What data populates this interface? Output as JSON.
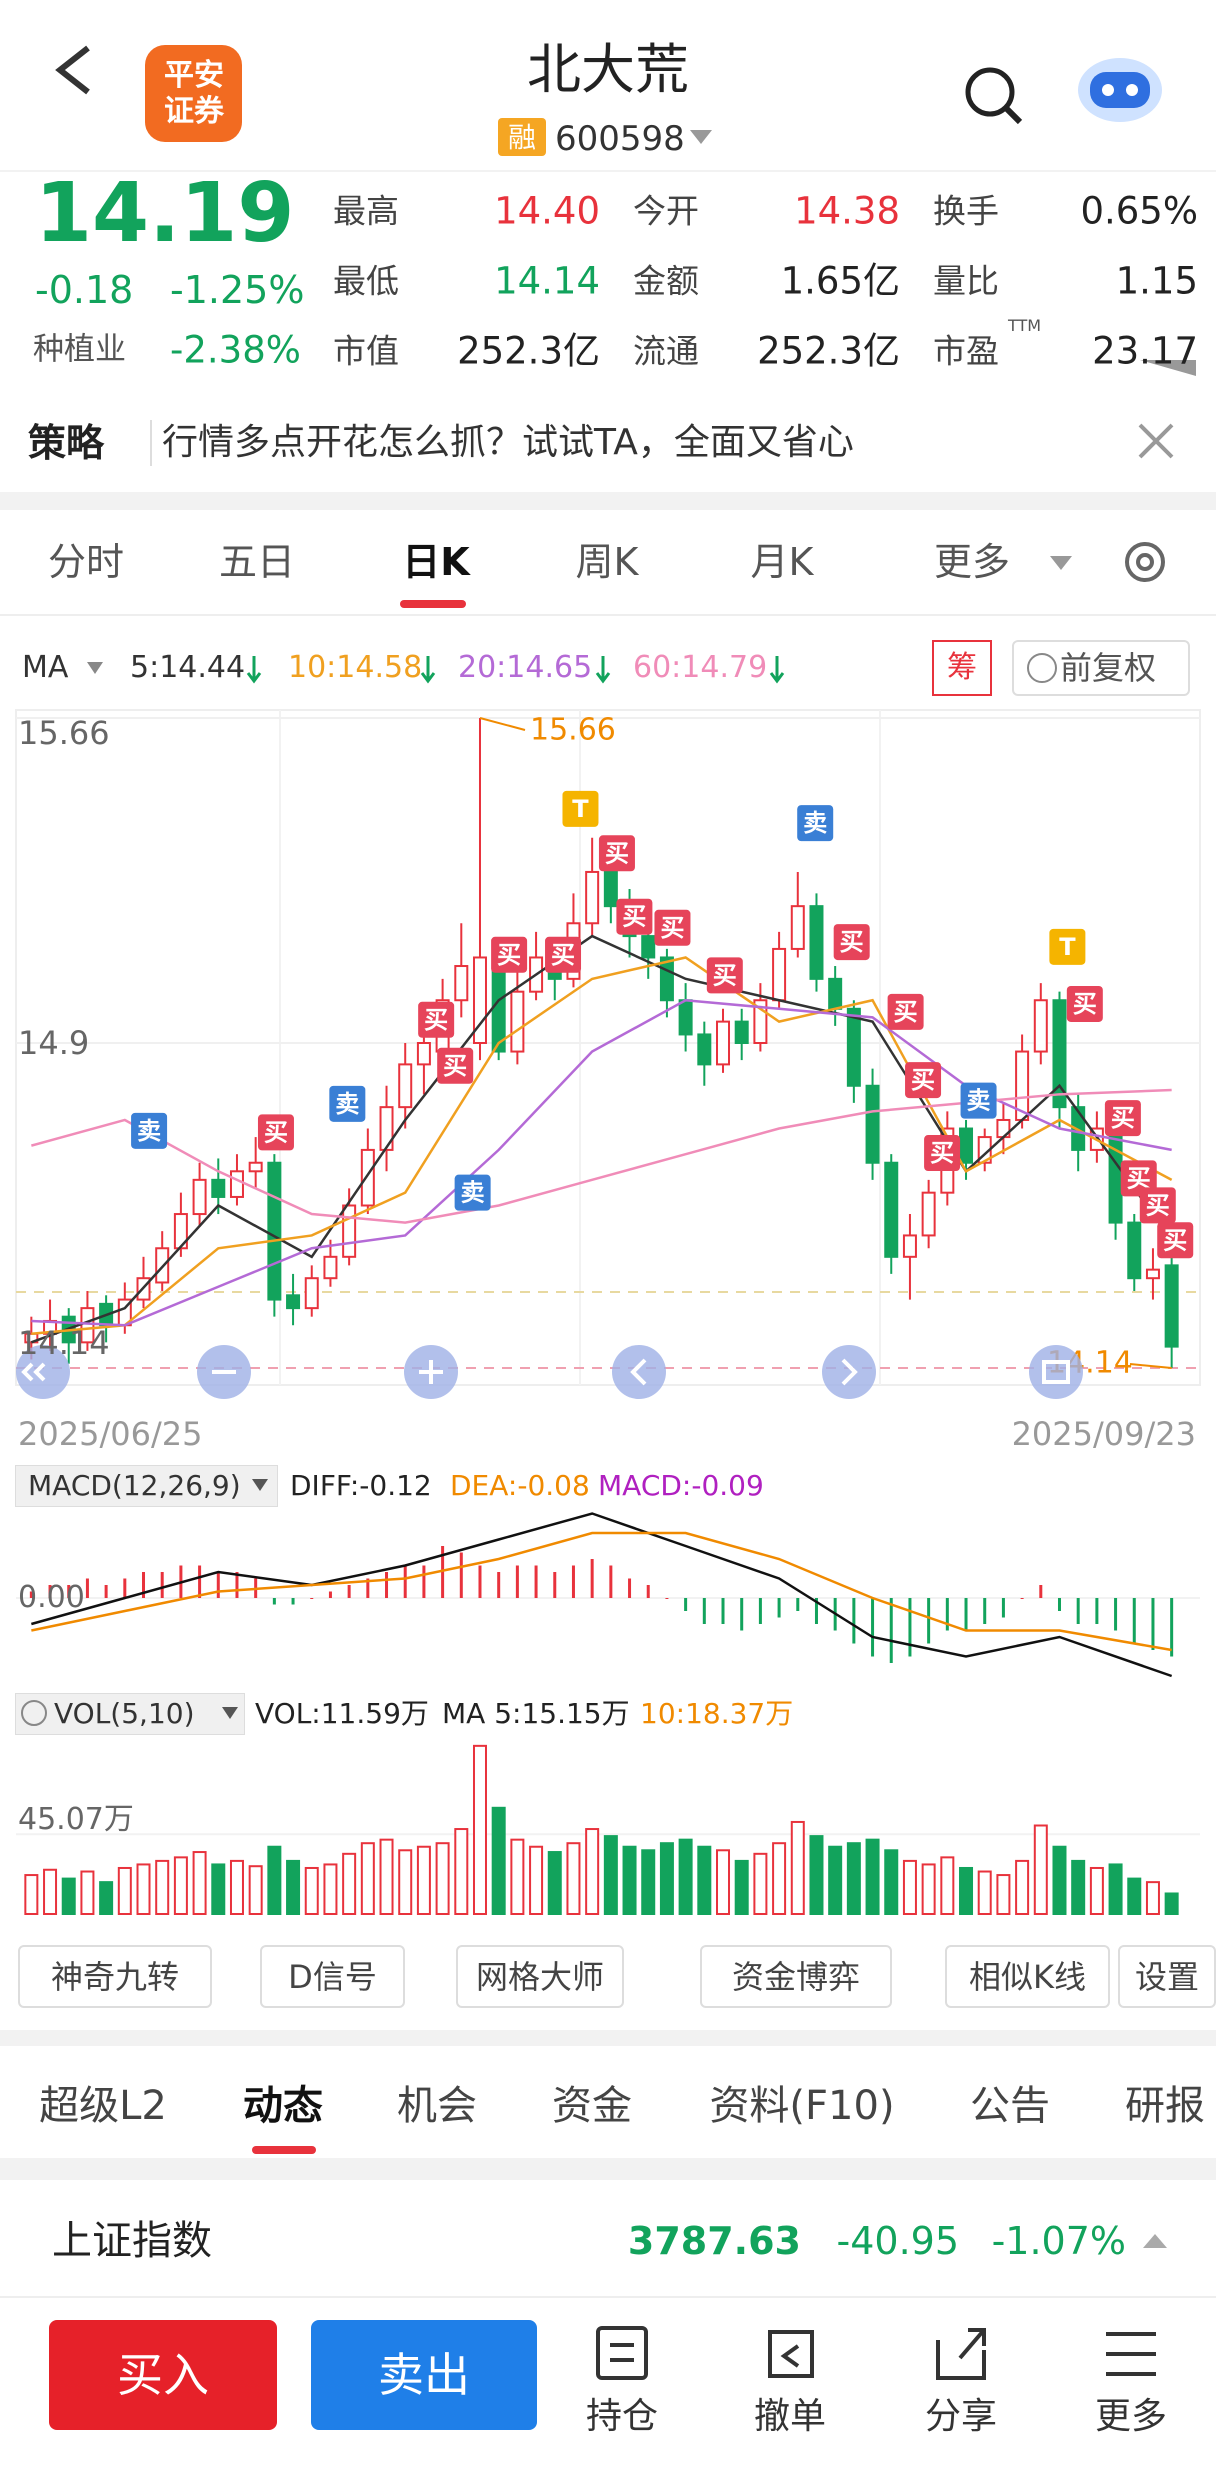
{
  "header": {
    "logo_top": "平安",
    "logo_bottom": "证券",
    "title": "北大荒",
    "badge": "融",
    "code": "600598"
  },
  "quote": {
    "price": "14.19",
    "change": "-0.18",
    "change_pct": "-1.25%",
    "sector": "种植业",
    "sector_pct": "-2.38%",
    "ttm": "TTM",
    "stats": [
      {
        "label": "最高",
        "value": "14.40",
        "color": "#e8323c"
      },
      {
        "label": "今开",
        "value": "14.38",
        "color": "#e8323c"
      },
      {
        "label": "换手",
        "value": "0.65%",
        "color": "#222222"
      },
      {
        "label": "最低",
        "value": "14.14",
        "color": "#12a35c"
      },
      {
        "label": "金额",
        "value": "1.65亿",
        "color": "#222222"
      },
      {
        "label": "量比",
        "value": "1.15",
        "color": "#222222"
      },
      {
        "label": "市值",
        "value": "252.3亿",
        "color": "#222222"
      },
      {
        "label": "流通",
        "value": "252.3亿",
        "color": "#222222"
      },
      {
        "label": "市盈",
        "value": "23.17",
        "color": "#222222"
      }
    ]
  },
  "banner": {
    "tag": "策略",
    "text": "行情多点开花怎么抓？试试TA，全面又省心"
  },
  "period_tabs": [
    "分时",
    "五日",
    "日K",
    "周K",
    "月K",
    "更多"
  ],
  "kline": {
    "ma_label": "MA",
    "chip": "筹",
    "adjust": "前复权",
    "start_date": "2025/06/25",
    "end_date": "2025/09/23",
    "ylim": [
      14.14,
      15.66
    ],
    "yticks": [
      15.66,
      14.9,
      14.14
    ],
    "ma_days": [
      1,
      6,
      11,
      16,
      21,
      26,
      31,
      36,
      41,
      46,
      51,
      56,
      62
    ],
    "ma": [
      {
        "name": "5:14.44",
        "color": "#333333",
        "values": [
          14.2,
          14.28,
          14.52,
          14.4,
          14.72,
          15.0,
          15.15,
          15.05,
          15.0,
          14.95,
          14.6,
          14.8,
          14.44
        ]
      },
      {
        "name": "10:14.58",
        "color": "#f0a020",
        "values": [
          14.22,
          14.24,
          14.42,
          14.45,
          14.55,
          14.9,
          15.05,
          15.1,
          14.95,
          15.0,
          14.6,
          14.72,
          14.58
        ]
      },
      {
        "name": "20:14.65",
        "color": "#b46ad6",
        "values": [
          14.25,
          14.24,
          14.33,
          14.42,
          14.45,
          14.65,
          14.88,
          15.0,
          14.98,
          14.96,
          14.8,
          14.7,
          14.65
        ]
      },
      {
        "name": "60:14.79",
        "color": "#f08cb8",
        "values": [
          14.66,
          14.72,
          14.6,
          14.5,
          14.48,
          14.52,
          14.58,
          14.64,
          14.7,
          14.74,
          14.76,
          14.78,
          14.79
        ]
      }
    ],
    "candles": [
      [
        14.2,
        14.26,
        14.16,
        14.22
      ],
      [
        14.22,
        14.3,
        14.18,
        14.25
      ],
      [
        14.26,
        14.28,
        14.15,
        14.2
      ],
      [
        14.2,
        14.32,
        14.18,
        14.28
      ],
      [
        14.29,
        14.31,
        14.2,
        14.24
      ],
      [
        14.24,
        14.34,
        14.22,
        14.3
      ],
      [
        14.3,
        14.4,
        14.28,
        14.35
      ],
      [
        14.34,
        14.46,
        14.32,
        14.42
      ],
      [
        14.42,
        14.55,
        14.4,
        14.5
      ],
      [
        14.5,
        14.62,
        14.47,
        14.58
      ],
      [
        14.58,
        14.63,
        14.5,
        14.54
      ],
      [
        14.54,
        14.64,
        14.52,
        14.6
      ],
      [
        14.6,
        14.68,
        14.56,
        14.62
      ],
      [
        14.62,
        14.64,
        14.26,
        14.3
      ],
      [
        14.31,
        14.36,
        14.24,
        14.28
      ],
      [
        14.28,
        14.38,
        14.26,
        14.35
      ],
      [
        14.35,
        14.44,
        14.33,
        14.4
      ],
      [
        14.4,
        14.56,
        14.38,
        14.52
      ],
      [
        14.52,
        14.7,
        14.5,
        14.65
      ],
      [
        14.65,
        14.8,
        14.6,
        14.75
      ],
      [
        14.75,
        14.9,
        14.7,
        14.85
      ],
      [
        14.85,
        14.95,
        14.78,
        14.9
      ],
      [
        14.88,
        15.05,
        14.86,
        15.0
      ],
      [
        15.0,
        15.18,
        14.96,
        15.08
      ],
      [
        14.9,
        15.66,
        14.86,
        15.1
      ],
      [
        15.1,
        15.12,
        14.86,
        14.88
      ],
      [
        14.88,
        15.08,
        14.85,
        15.02
      ],
      [
        15.02,
        15.16,
        15.0,
        15.1
      ],
      [
        15.1,
        15.14,
        15.0,
        15.05
      ],
      [
        15.05,
        15.25,
        15.03,
        15.18
      ],
      [
        15.18,
        15.38,
        15.15,
        15.3
      ],
      [
        15.3,
        15.34,
        15.18,
        15.22
      ],
      [
        15.22,
        15.26,
        15.1,
        15.15
      ],
      [
        15.15,
        15.18,
        15.05,
        15.1
      ],
      [
        15.1,
        15.12,
        14.96,
        15.0
      ],
      [
        15.0,
        15.04,
        14.88,
        14.92
      ],
      [
        14.92,
        14.95,
        14.8,
        14.85
      ],
      [
        14.85,
        14.98,
        14.83,
        14.95
      ],
      [
        14.95,
        14.98,
        14.86,
        14.9
      ],
      [
        14.9,
        15.04,
        14.88,
        15.0
      ],
      [
        15.0,
        15.16,
        14.98,
        15.12
      ],
      [
        15.12,
        15.3,
        15.1,
        15.22
      ],
      [
        15.22,
        15.25,
        15.02,
        15.05
      ],
      [
        15.05,
        15.08,
        14.94,
        14.98
      ],
      [
        14.98,
        15.0,
        14.76,
        14.8
      ],
      [
        14.8,
        14.84,
        14.58,
        14.62
      ],
      [
        14.62,
        14.64,
        14.36,
        14.4
      ],
      [
        14.4,
        14.5,
        14.3,
        14.45
      ],
      [
        14.45,
        14.58,
        14.42,
        14.55
      ],
      [
        14.55,
        14.74,
        14.52,
        14.7
      ],
      [
        14.7,
        14.72,
        14.58,
        14.62
      ],
      [
        14.62,
        14.7,
        14.6,
        14.68
      ],
      [
        14.68,
        14.76,
        14.64,
        14.72
      ],
      [
        14.72,
        14.92,
        14.7,
        14.88
      ],
      [
        14.88,
        15.04,
        14.85,
        15.0
      ],
      [
        15.0,
        15.02,
        14.7,
        14.75
      ],
      [
        14.75,
        14.78,
        14.6,
        14.65
      ],
      [
        14.65,
        14.74,
        14.62,
        14.7
      ],
      [
        14.7,
        14.72,
        14.44,
        14.48
      ],
      [
        14.48,
        14.5,
        14.32,
        14.35
      ],
      [
        14.35,
        14.42,
        14.3,
        14.37
      ],
      [
        14.38,
        14.4,
        14.14,
        14.19
      ]
    ],
    "signals": [
      {
        "text": "卖",
        "color": "#3a7fd5"
      },
      {
        "text": "买",
        "color": "#e6445a"
      },
      {
        "text": "卖",
        "color": "#3a7fd5"
      },
      {
        "text": "买",
        "color": "#e6445a"
      },
      {
        "text": "买",
        "color": "#e6445a"
      },
      {
        "text": "卖",
        "color": "#3a7fd5"
      },
      {
        "text": "买",
        "color": "#e6445a"
      },
      {
        "text": "买",
        "color": "#e6445a"
      },
      {
        "text": "T",
        "color": "#f5b400"
      },
      {
        "text": "买",
        "color": "#e6445a"
      },
      {
        "text": "买",
        "color": "#e6445a"
      },
      {
        "text": "买",
        "color": "#e6445a"
      },
      {
        "text": "买",
        "color": "#e6445a"
      },
      {
        "text": "卖",
        "color": "#3a7fd5"
      },
      {
        "text": "买",
        "color": "#e6445a"
      },
      {
        "text": "买",
        "color": "#e6445a"
      },
      {
        "text": "买",
        "color": "#e6445a"
      },
      {
        "text": "卖",
        "color": "#3a7fd5"
      },
      {
        "text": "买",
        "color": "#e6445a"
      },
      {
        "text": "T",
        "color": "#f5b400"
      },
      {
        "text": "买",
        "color": "#e6445a"
      },
      {
        "text": "买",
        "color": "#e6445a"
      },
      {
        "text": "买",
        "color": "#e6445a"
      },
      {
        "text": "买",
        "color": "#e6445a"
      },
      {
        "text": "买",
        "color": "#e6445a"
      }
    ]
  },
  "macd": {
    "label": "MACD(12,26,9)",
    "diff_label": "DIFF:-0.12",
    "dea_label": "DEA:-0.08",
    "macd_label": "MACD:-0.09",
    "ylim": [
      -0.14,
      0.14
    ],
    "yticks": [
      {
        "value": 0,
        "label": "0.00"
      }
    ],
    "days": [
      1,
      6,
      11,
      16,
      21,
      26,
      31,
      36,
      41,
      46,
      51,
      56,
      62
    ],
    "diff": [
      -0.04,
      0.0,
      0.04,
      0.02,
      0.05,
      0.09,
      0.13,
      0.08,
      0.03,
      -0.06,
      -0.09,
      -0.06,
      -0.12
    ],
    "dea": [
      -0.05,
      -0.02,
      0.01,
      0.02,
      0.03,
      0.06,
      0.1,
      0.1,
      0.06,
      0.0,
      -0.05,
      -0.05,
      -0.08
    ],
    "hist": [
      0.01,
      0.02,
      0.02,
      0.03,
      0.02,
      0.03,
      0.04,
      0.04,
      0.05,
      0.05,
      0.04,
      0.04,
      0.03,
      -0.01,
      -0.01,
      0,
      0.01,
      0.02,
      0.03,
      0.04,
      0.05,
      0.05,
      0.08,
      0.07,
      0.05,
      0.04,
      0.05,
      0.05,
      0.04,
      0.05,
      0.06,
      0.05,
      0.03,
      0.02,
      0,
      -0.02,
      -0.04,
      -0.04,
      -0.05,
      -0.04,
      -0.03,
      -0.02,
      -0.04,
      -0.05,
      -0.07,
      -0.09,
      -0.1,
      -0.09,
      -0.07,
      -0.05,
      -0.05,
      -0.04,
      -0.03,
      0,
      0.02,
      -0.02,
      -0.04,
      -0.04,
      -0.05,
      -0.07,
      -0.08,
      -0.09
    ]
  },
  "volume": {
    "label": "VOL(5,10)",
    "vol_label": "VOL:11.59万",
    "ma5_label": "MA 5:15.15万",
    "ma10_label": "10:18.37万",
    "ylim": [
      0,
      100
    ],
    "yticks": [
      {
        "value": 45.07,
        "label": "45.07万"
      }
    ],
    "values": [
      22,
      25,
      20,
      24,
      18,
      26,
      28,
      30,
      32,
      35,
      28,
      30,
      27,
      38,
      30,
      26,
      28,
      34,
      40,
      42,
      36,
      38,
      40,
      48,
      95,
      60,
      42,
      38,
      35,
      40,
      48,
      44,
      38,
      36,
      40,
      42,
      38,
      36,
      30,
      34,
      40,
      52,
      44,
      38,
      40,
      42,
      36,
      30,
      28,
      32,
      26,
      24,
      22,
      30,
      50,
      38,
      30,
      26,
      28,
      20,
      18,
      11.59
    ]
  },
  "tools": [
    "神奇九转",
    "D信号",
    "网格大师",
    "资金博弈",
    "相似K线",
    "设置"
  ],
  "info_tabs": [
    "超级L2",
    "动态",
    "机会",
    "资金",
    "资料(F10)",
    "公告",
    "研报"
  ],
  "index": {
    "name": "上证指数",
    "price": "3787.63",
    "change": "-40.95",
    "change_pct": "-1.07%"
  },
  "actions": {
    "buy": "买入",
    "sell": "卖出",
    "items": [
      "持仓",
      "撤单",
      "分享",
      "更多"
    ]
  }
}
